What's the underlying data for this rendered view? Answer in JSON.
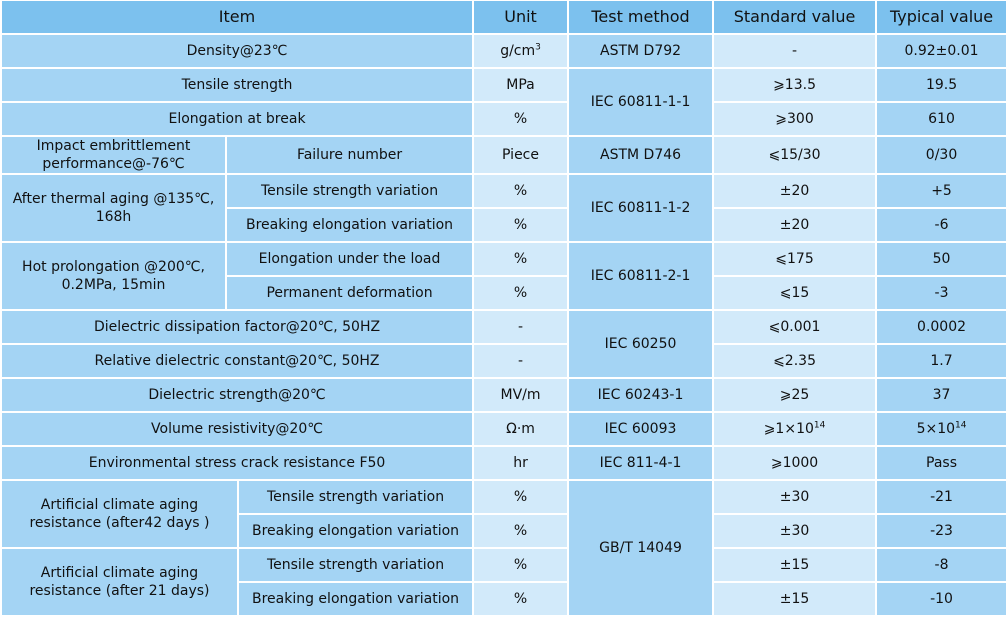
{
  "table": {
    "header": [
      "Item",
      "Unit",
      "Test method",
      "Standard value",
      "Typical value"
    ],
    "rows": [
      [
        "Density@23℃",
        {
          "text": "g/cm",
          "sup": "3"
        },
        "ASTM D792",
        "-",
        "0.92±0.01"
      ],
      [
        "Tensile strength",
        "MPa",
        "IEC 60811-1-1",
        "⩾13.5",
        "19.5"
      ],
      [
        "Elongation at break",
        "%",
        "⩾300",
        "610"
      ],
      [
        "Impact embrittlement performance@-76℃",
        "Failure number",
        "Piece",
        "ASTM D746",
        "⩽15/30",
        "0/30"
      ],
      [
        "After thermal aging @135℃, 168h",
        "Tensile strength variation",
        "%",
        "IEC 60811-1-2",
        "±20",
        "+5"
      ],
      [
        "Breaking elongation variation",
        "%",
        "±20",
        "-6"
      ],
      [
        "Hot prolongation @200℃, 0.2MPa, 15min",
        "Elongation under the load",
        "%",
        "IEC 60811-2-1",
        "⩽175",
        "50"
      ],
      [
        "Permanent deformation",
        "%",
        "⩽15",
        "-3"
      ],
      [
        "Dielectric dissipation factor@20℃, 50HZ",
        "-",
        "IEC 60250",
        "⩽0.001",
        "0.0002"
      ],
      [
        "Relative dielectric constant@20℃, 50HZ",
        "-",
        "⩽2.35",
        "1.7"
      ],
      [
        "Dielectric strength@20℃",
        "MV/m",
        "IEC 60243-1",
        "⩾25",
        "37"
      ],
      [
        "Volume resistivity@20℃",
        "Ω·m",
        "IEC 60093",
        {
          "text": "⩾1×10",
          "sup": "14"
        },
        {
          "text": "5×10",
          "sup": "14"
        }
      ],
      [
        "Environmental stress crack resistance F50",
        "hr",
        "IEC 811-4-1",
        "⩾1000",
        "Pass"
      ],
      [
        "Artificial climate aging resistance (after42 days )",
        "Tensile strength variation",
        "%",
        "GB/T 14049",
        "±30",
        "-21"
      ],
      [
        "Breaking elongation variation",
        "%",
        "±30",
        "-23"
      ],
      [
        "Artificial climate aging resistance (after 21 days)",
        "Tensile strength variation",
        "%",
        "±15",
        "-8"
      ],
      [
        "Breaking elongation variation",
        "%",
        "±15",
        "-10"
      ]
    ]
  }
}
